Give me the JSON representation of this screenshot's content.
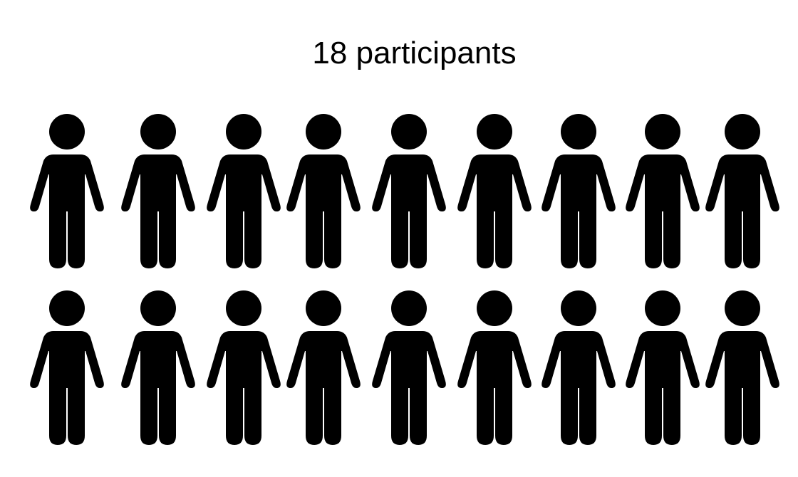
{
  "title": "18 participants",
  "participant_count": 18,
  "icon": "person-icon",
  "icon_color": "#000000",
  "background_color": "#ffffff"
}
